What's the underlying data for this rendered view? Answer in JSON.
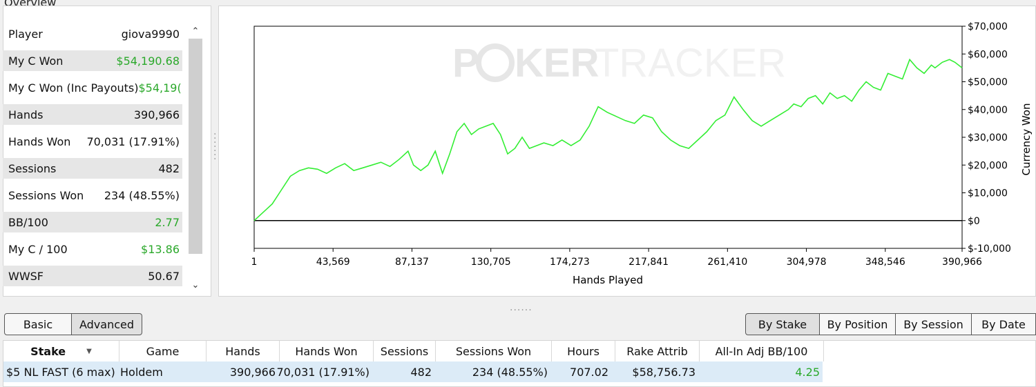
{
  "overview": {
    "title": "Overview",
    "stats": [
      {
        "label": "Player",
        "value": "giova9990",
        "green": false
      },
      {
        "label": "My C Won",
        "value": "$54,190.68",
        "green": true
      },
      {
        "label": "My C Won (Inc Payouts)",
        "value": "$54,19(",
        "green": true
      },
      {
        "label": "Hands",
        "value": "390,966",
        "green": false
      },
      {
        "label": "Hands Won",
        "value": "70,031 (17.91%)",
        "green": false
      },
      {
        "label": "Sessions",
        "value": "482",
        "green": false
      },
      {
        "label": "Sessions Won",
        "value": "234 (48.55%)",
        "green": false
      },
      {
        "label": "BB/100",
        "value": "2.77",
        "green": true
      },
      {
        "label": "My C / 100",
        "value": "$13.86",
        "green": true
      },
      {
        "label": "WWSF",
        "value": "50.67",
        "green": false
      }
    ],
    "scroll_up_icon": "chevron-up-icon",
    "scroll_down_icon": "chevron-down-icon"
  },
  "chart": {
    "watermark_left": "P",
    "watermark_chip": "O",
    "watermark_right": "KER",
    "watermark_faint": "TRACKER",
    "ylabel": "Currency Won",
    "xlabel": "Hands Played",
    "line_color": "#33ee33",
    "watermark_color": "#e6e6e6",
    "watermark_faint_color": "#f1f1f1"
  },
  "chart_data": {
    "type": "line",
    "xlabel": "Hands Played",
    "ylabel": "Currency Won",
    "xlim": [
      1,
      390966
    ],
    "ylim": [
      -10000,
      70000
    ],
    "x_ticks": [
      1,
      43569,
      87137,
      130705,
      174273,
      217841,
      261410,
      304978,
      348546,
      390966
    ],
    "x_tick_labels": [
      "1",
      "43,569",
      "87,137",
      "130,705",
      "174,273",
      "217,841",
      "261,410",
      "304,978",
      "348,546",
      "390,966"
    ],
    "y_ticks": [
      70000,
      60000,
      50000,
      40000,
      30000,
      20000,
      10000,
      0,
      -10000
    ],
    "y_tick_labels": [
      "$70,000",
      "$60,000",
      "$50,000",
      "$40,000",
      "$30,000",
      "$20,000",
      "$10,000",
      "$0",
      "$-10,000"
    ],
    "grid": false,
    "series": [
      {
        "x": [
          1,
          5000,
          10000,
          15000,
          20000,
          25000,
          30000,
          35000,
          40000,
          45000,
          50000,
          55000,
          60000,
          65000,
          70000,
          75000,
          80000,
          85000,
          88000,
          92000,
          96000,
          100000,
          104000,
          108000,
          112000,
          116000,
          120000,
          124000,
          128000,
          132000,
          136000,
          140000,
          144000,
          148000,
          152000,
          156000,
          160000,
          165000,
          170000,
          175000,
          180000,
          185000,
          190000,
          195000,
          200000,
          205000,
          210000,
          215000,
          220000,
          225000,
          230000,
          235000,
          240000,
          245000,
          250000,
          255000,
          260000,
          265000,
          270000,
          275000,
          280000,
          285000,
          290000,
          295000,
          298000,
          302000,
          306000,
          310000,
          314000,
          318000,
          322000,
          326000,
          330000,
          334000,
          338000,
          342000,
          346000,
          350000,
          354000,
          358000,
          362000,
          366000,
          370000,
          374000,
          376000,
          380000,
          384000,
          387000,
          390966
        ],
        "y": [
          0,
          3000,
          6000,
          11000,
          16000,
          18000,
          19000,
          18500,
          17000,
          19000,
          20500,
          18000,
          19000,
          20000,
          21000,
          19500,
          22000,
          25000,
          20000,
          18000,
          20000,
          25000,
          17000,
          24000,
          32000,
          35000,
          31000,
          33000,
          34000,
          35000,
          31000,
          24000,
          26000,
          30000,
          26000,
          27000,
          28000,
          27000,
          29000,
          27000,
          29000,
          34000,
          41000,
          39000,
          37500,
          36000,
          35000,
          38000,
          37000,
          32000,
          29000,
          27000,
          26000,
          29000,
          32000,
          36000,
          38000,
          44500,
          40000,
          36000,
          34000,
          36000,
          38000,
          40000,
          42000,
          41000,
          44000,
          45000,
          42000,
          46000,
          44000,
          45000,
          43000,
          47000,
          50000,
          48000,
          47000,
          53000,
          52000,
          51000,
          58000,
          55000,
          53000,
          56000,
          55000,
          57000,
          58000,
          57000,
          55000
        ]
      }
    ]
  },
  "view_tabs": {
    "basic": "Basic",
    "advanced": "Advanced"
  },
  "group_tabs": {
    "by_stake": "By Stake",
    "by_position": "By Position",
    "by_session": "By Session",
    "by_date": "By Date"
  },
  "grid": {
    "columns": [
      "Stake",
      "Game",
      "Hands",
      "Hands Won",
      "Sessions",
      "Sessions Won",
      "Hours",
      "Rake Attrib",
      "All-In Adj BB/100"
    ],
    "sort_icon": "sort-down-icon",
    "row": {
      "stake": "$5 NL FAST (6 max)",
      "game": "Holdem",
      "hands": "390,966",
      "hands_won": "70,031 (17.91%)",
      "sessions": "482",
      "sessions_won": "234 (48.55%)",
      "hours": "707.02",
      "rake_attrib": "$58,756.73",
      "allin_adj_bb100": "4.25"
    }
  }
}
